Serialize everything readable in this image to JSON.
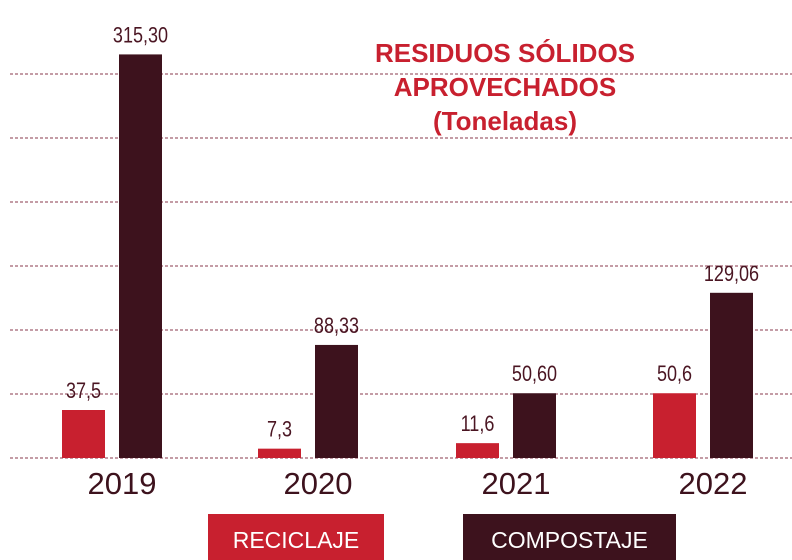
{
  "chart_data": {
    "type": "bar",
    "title": "RESIDUOS SÓLIDOS APROVECHADOS",
    "subtitle": "(Toneladas)",
    "categories": [
      "2019",
      "2020",
      "2021",
      "2022"
    ],
    "series": [
      {
        "name": "RECICLAJE",
        "color": "#c8202f",
        "values": [
          37.5,
          7.3,
          11.6,
          50.6
        ],
        "value_labels": [
          "37,5",
          "7,3",
          "11,6",
          "50,6"
        ]
      },
      {
        "name": "COMPOSTAJE",
        "color": "#3d121d",
        "values": [
          315.3,
          88.33,
          50.6,
          129.06
        ],
        "value_labels": [
          "315,30",
          "88,33",
          "50,60",
          "129,06"
        ]
      }
    ],
    "ylim": [
      0,
      350
    ],
    "yticks": [
      0,
      50,
      100,
      150,
      200,
      250,
      300
    ],
    "grid": true
  }
}
